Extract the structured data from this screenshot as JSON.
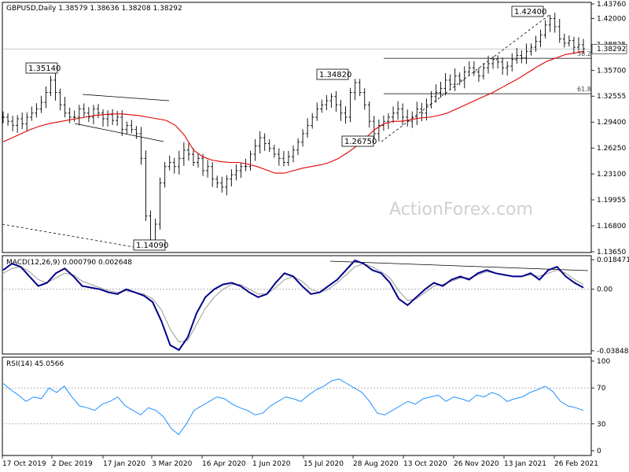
{
  "chart_data": {
    "type": "candlestick",
    "symbol_header": "GBPUSD,Daily  1.38579 1.38636 1.38208 1.38292",
    "watermark": "ActionForex.com",
    "price_panel": {
      "ylim": [
        1.1365,
        1.4376
      ],
      "y_ticks": [
        "1.43760",
        "1.42000",
        "1.38825",
        "1.35700",
        "1.32555",
        "1.29400",
        "1.26250",
        "1.23100",
        "1.19955",
        "1.16800",
        "1.13650"
      ],
      "y_tick_values": [
        1.4376,
        1.42,
        1.38825,
        1.357,
        1.32555,
        1.294,
        1.2625,
        1.231,
        1.19955,
        1.168,
        1.1365
      ],
      "current_price_label": "1.38292",
      "current_price": 1.38292,
      "annotations": [
        {
          "text": "1.35140",
          "value": 1.3514
        },
        {
          "text": "1.34820",
          "value": 1.3482
        },
        {
          "text": "1.26750",
          "value": 1.2675
        },
        {
          "text": "1.42400",
          "value": 1.424
        },
        {
          "text": "1.14090",
          "value": 1.1409
        }
      ],
      "fib_levels": [
        {
          "label": "38.2",
          "value": 1.3715
        },
        {
          "label": "61.8",
          "value": 1.3285
        }
      ],
      "series": [
        {
          "name": "price",
          "color": "#000000"
        },
        {
          "name": "55-day MA",
          "color": "#e00000"
        }
      ],
      "close_path": [
        1.3,
        1.295,
        1.29,
        1.298,
        1.292,
        1.3,
        1.305,
        1.31,
        1.318,
        1.33,
        1.345,
        1.33,
        1.315,
        1.305,
        1.3,
        1.3,
        1.31,
        1.305,
        1.3,
        1.31,
        1.305,
        1.298,
        1.303,
        1.296,
        1.3,
        1.285,
        1.29,
        1.285,
        1.28,
        1.25,
        1.18,
        1.15,
        1.17,
        1.22,
        1.24,
        1.245,
        1.24,
        1.25,
        1.26,
        1.255,
        1.245,
        1.25,
        1.235,
        1.24,
        1.225,
        1.22,
        1.215,
        1.225,
        1.23,
        1.235,
        1.24,
        1.24,
        1.255,
        1.265,
        1.275,
        1.268,
        1.262,
        1.255,
        1.25,
        1.245,
        1.252,
        1.26,
        1.27,
        1.28,
        1.29,
        1.3,
        1.31,
        1.315,
        1.32,
        1.325,
        1.315,
        1.305,
        1.3,
        1.33,
        1.342,
        1.33,
        1.315,
        1.295,
        1.28,
        1.29,
        1.295,
        1.3,
        1.305,
        1.31,
        1.3,
        1.295,
        1.3,
        1.31,
        1.305,
        1.315,
        1.325,
        1.33,
        1.335,
        1.345,
        1.34,
        1.35,
        1.345,
        1.355,
        1.36,
        1.355,
        1.35,
        1.36,
        1.365,
        1.37,
        1.367,
        1.36,
        1.362,
        1.37,
        1.375,
        1.372,
        1.38,
        1.385,
        1.392,
        1.4,
        1.412,
        1.42,
        1.41,
        1.395,
        1.39,
        1.393,
        1.385,
        1.388,
        1.383
      ],
      "ma_path": [
        1.27,
        1.275,
        1.28,
        1.285,
        1.289,
        1.292,
        1.294,
        1.296,
        1.298,
        1.3,
        1.302,
        1.303,
        1.304,
        1.304,
        1.303,
        1.302,
        1.3,
        1.298,
        1.296,
        1.29,
        1.278,
        1.26,
        1.252,
        1.248,
        1.246,
        1.245,
        1.245,
        1.243,
        1.24,
        1.236,
        1.232,
        1.232,
        1.235,
        1.238,
        1.24,
        1.242,
        1.245,
        1.25,
        1.257,
        1.265,
        1.275,
        1.285,
        1.292,
        1.295,
        1.295,
        1.297,
        1.299,
        1.3,
        1.302,
        1.305,
        1.31,
        1.315,
        1.32,
        1.325,
        1.33,
        1.336,
        1.342,
        1.348,
        1.355,
        1.362,
        1.368,
        1.372,
        1.376,
        1.378,
        1.38
      ]
    },
    "macd_panel": {
      "header": "MACD(12,26,9) 0.000790 0.002648",
      "y_ticks": [
        "0.018471",
        "0.00",
        "-0.038486"
      ],
      "y_tick_values": [
        0.018471,
        0.0,
        -0.038486
      ],
      "ylim": [
        -0.04,
        0.02
      ],
      "macd_path": [
        0.012,
        0.016,
        0.014,
        0.008,
        0.002,
        0.004,
        0.01,
        0.013,
        0.008,
        0.002,
        0.001,
        0.0,
        -0.002,
        -0.003,
        0.0,
        -0.002,
        -0.004,
        -0.008,
        -0.02,
        -0.035,
        -0.038,
        -0.03,
        -0.015,
        -0.005,
        0.0,
        0.003,
        0.004,
        0.002,
        -0.002,
        -0.005,
        -0.003,
        0.004,
        0.01,
        0.008,
        0.002,
        -0.003,
        -0.002,
        0.002,
        0.006,
        0.012,
        0.018,
        0.016,
        0.012,
        0.01,
        0.004,
        -0.006,
        -0.01,
        -0.005,
        0.0,
        0.004,
        0.002,
        0.006,
        0.008,
        0.006,
        0.01,
        0.012,
        0.01,
        0.009,
        0.008,
        0.008,
        0.01,
        0.006,
        0.012,
        0.014,
        0.008,
        0.004,
        0.001
      ],
      "signal_path": [
        0.01,
        0.013,
        0.014,
        0.011,
        0.006,
        0.004,
        0.007,
        0.01,
        0.009,
        0.005,
        0.003,
        0.001,
        -0.001,
        -0.002,
        -0.001,
        -0.002,
        -0.003,
        -0.006,
        -0.013,
        -0.025,
        -0.033,
        -0.032,
        -0.022,
        -0.012,
        -0.005,
        0.0,
        0.003,
        0.003,
        0.0,
        -0.003,
        -0.003,
        0.001,
        0.006,
        0.008,
        0.005,
        0.0,
        -0.002,
        0.0,
        0.004,
        0.009,
        0.014,
        0.016,
        0.014,
        0.011,
        0.007,
        -0.001,
        -0.007,
        -0.006,
        -0.002,
        0.002,
        0.003,
        0.005,
        0.007,
        0.007,
        0.009,
        0.011,
        0.01,
        0.009,
        0.008,
        0.008,
        0.009,
        0.008,
        0.01,
        0.012,
        0.01,
        0.006,
        0.003
      ],
      "trendline_label": ""
    },
    "rsi_panel": {
      "header": "RSI(14) 45.0566",
      "y_ticks": [
        "100",
        "70",
        "30",
        "0"
      ],
      "y_tick_values": [
        100,
        70,
        30,
        0
      ],
      "ylim": [
        0,
        100
      ],
      "rsi_path": [
        75,
        68,
        62,
        55,
        60,
        58,
        70,
        65,
        72,
        60,
        50,
        48,
        45,
        52,
        55,
        60,
        50,
        45,
        40,
        48,
        45,
        38,
        25,
        18,
        30,
        45,
        50,
        55,
        60,
        58,
        52,
        48,
        45,
        40,
        42,
        50,
        55,
        60,
        58,
        55,
        62,
        68,
        72,
        78,
        80,
        75,
        70,
        65,
        55,
        42,
        40,
        45,
        50,
        55,
        52,
        58,
        60,
        62,
        55,
        60,
        58,
        55,
        62,
        60,
        65,
        62,
        55,
        58,
        60,
        65,
        68,
        72,
        66,
        55,
        50,
        48,
        45
      ],
      "levels": [
        70,
        30
      ]
    },
    "x_labels": [
      "17 Oct 2019",
      "2 Dec 2019",
      "17 Jan 2020",
      "3 Mar 2020",
      "16 Apr 2020",
      "1 Jun 2020",
      "15 Jul 2020",
      "28 Aug 2020",
      "13 Oct 2020",
      "26 Nov 2020",
      "13 Jan 2021",
      "26 Feb 2021"
    ]
  }
}
